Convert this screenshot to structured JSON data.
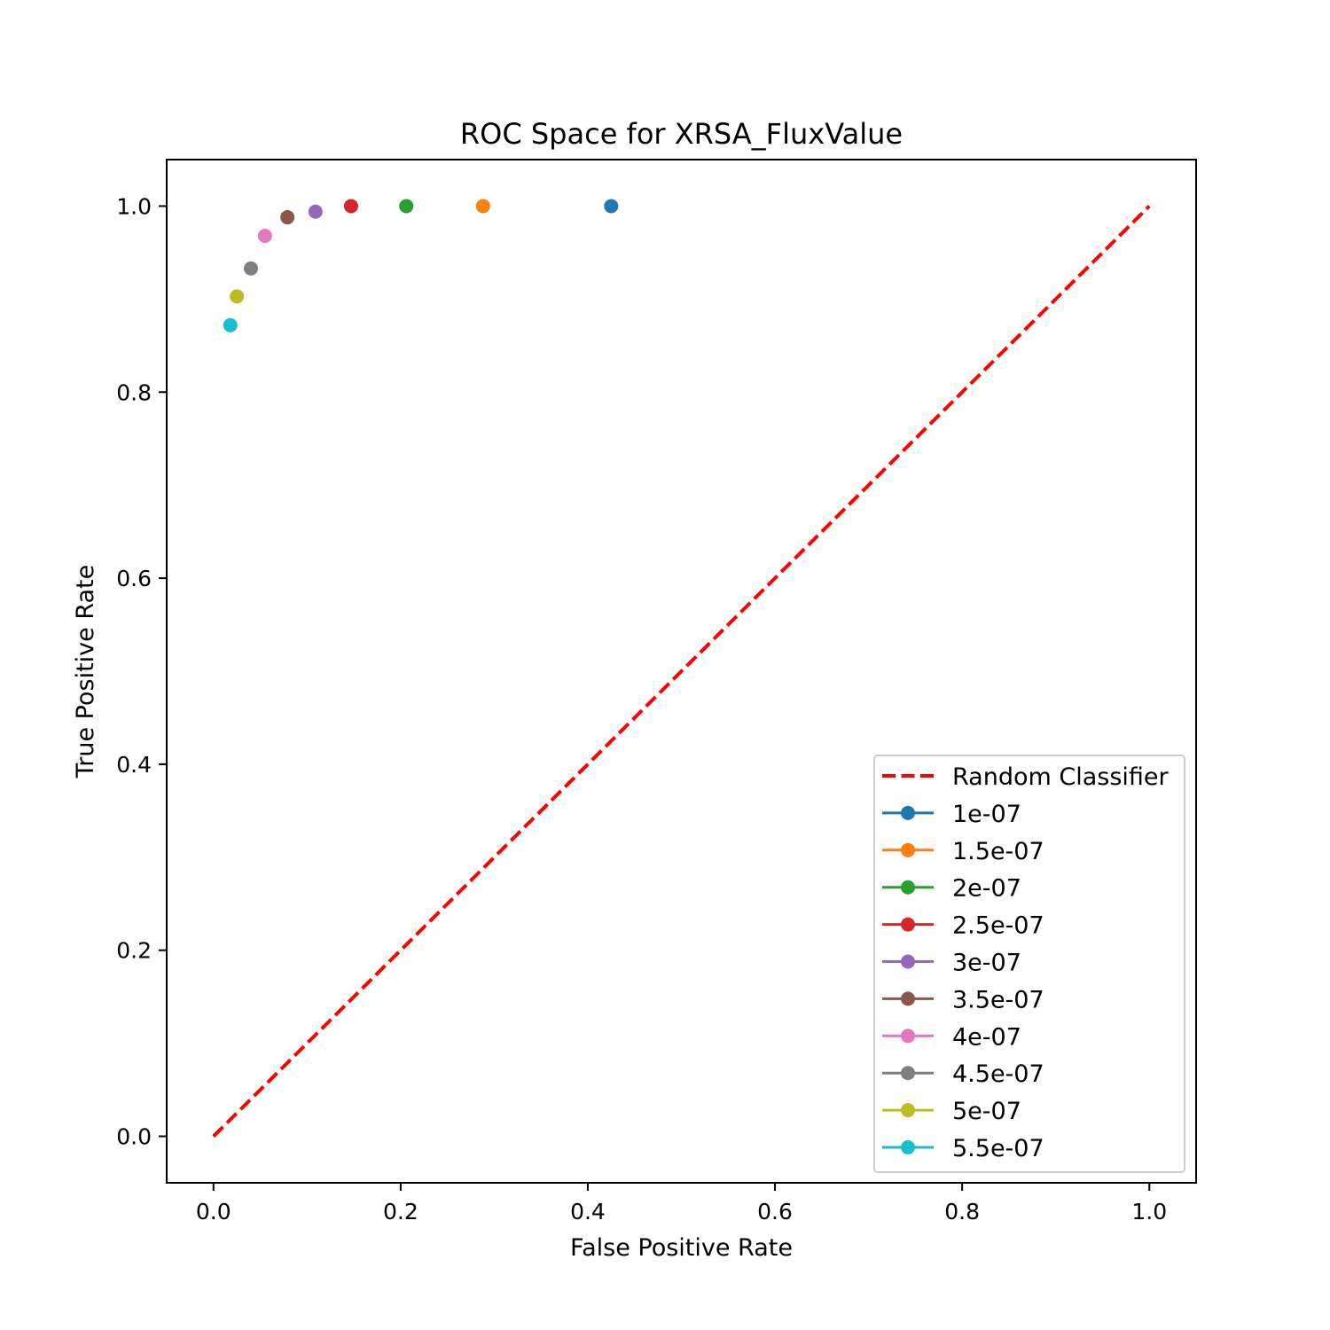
{
  "chart_data": {
    "type": "scatter",
    "title": "ROC Space for XRSA_FluxValue",
    "xlabel": "False Positive Rate",
    "ylabel": "True Positive Rate",
    "xlim": [
      -0.05,
      1.05
    ],
    "ylim": [
      -0.05,
      1.05
    ],
    "x_ticks": [
      "0.0",
      "0.2",
      "0.4",
      "0.6",
      "0.8",
      "1.0"
    ],
    "y_ticks": [
      "0.0",
      "0.2",
      "0.4",
      "0.6",
      "0.8",
      "1.0"
    ],
    "grid": false,
    "legend_position": "lower-right",
    "reference_line": {
      "name": "Random Classifier",
      "x": [
        0,
        1
      ],
      "y": [
        0,
        1
      ],
      "color": "#ff0000",
      "style": "dashed"
    },
    "series": [
      {
        "name": "1e-07",
        "x": [
          0.425
        ],
        "y": [
          1.0
        ],
        "color": "#1f77b4"
      },
      {
        "name": "1.5e-07",
        "x": [
          0.288
        ],
        "y": [
          1.0
        ],
        "color": "#ff7f0e"
      },
      {
        "name": "2e-07",
        "x": [
          0.206
        ],
        "y": [
          1.0
        ],
        "color": "#2ca02c"
      },
      {
        "name": "2.5e-07",
        "x": [
          0.147
        ],
        "y": [
          1.0
        ],
        "color": "#d62728"
      },
      {
        "name": "3e-07",
        "x": [
          0.109
        ],
        "y": [
          0.994
        ],
        "color": "#9467bd"
      },
      {
        "name": "3.5e-07",
        "x": [
          0.079
        ],
        "y": [
          0.988
        ],
        "color": "#8c564b"
      },
      {
        "name": "4e-07",
        "x": [
          0.055
        ],
        "y": [
          0.968
        ],
        "color": "#e377c2"
      },
      {
        "name": "4.5e-07",
        "x": [
          0.04
        ],
        "y": [
          0.933
        ],
        "color": "#7f7f7f"
      },
      {
        "name": "5e-07",
        "x": [
          0.025
        ],
        "y": [
          0.903
        ],
        "color": "#bcbd22"
      },
      {
        "name": "5.5e-07",
        "x": [
          0.018
        ],
        "y": [
          0.872
        ],
        "color": "#17becf"
      }
    ]
  }
}
